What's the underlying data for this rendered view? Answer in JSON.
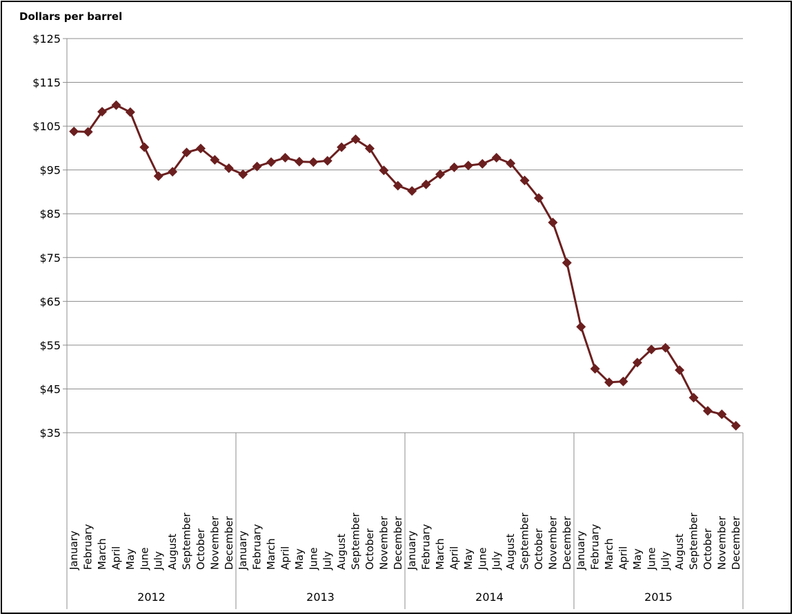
{
  "chart_data": {
    "type": "line",
    "title": "",
    "ylabel": "Dollars  per barrel",
    "xlabel": "",
    "ylim": [
      35,
      125
    ],
    "yticks": [
      35,
      45,
      55,
      65,
      75,
      85,
      95,
      105,
      115,
      125
    ],
    "ytick_labels": [
      "$35",
      "$45",
      "$55",
      "$65",
      "$75",
      "$85",
      "$95",
      "$105",
      "$115",
      "$125"
    ],
    "grid": true,
    "line_color": "#6B1F1F",
    "years": [
      "2012",
      "2013",
      "2014",
      "2015"
    ],
    "months": [
      "January",
      "February",
      "March",
      "April",
      "May",
      "June",
      "July",
      "August",
      "September",
      "October",
      "November",
      "December"
    ],
    "series": [
      {
        "values": [
          103.8,
          103.7,
          108.3,
          109.8,
          108.2,
          100.2,
          93.6,
          94.6,
          99.0,
          99.9,
          97.3,
          95.4,
          94.0,
          95.8,
          96.8,
          97.8,
          96.9,
          96.8,
          97.1,
          100.2,
          102.0,
          99.9,
          94.9,
          91.4,
          90.2,
          91.7,
          94.0,
          95.6,
          96.0,
          96.4,
          97.8,
          96.5,
          92.6,
          88.6,
          83.0,
          73.8,
          59.2,
          49.6,
          46.5,
          46.7,
          51.0,
          54.0,
          54.4,
          49.3,
          43.0,
          40.0,
          39.2,
          36.6
        ]
      }
    ]
  }
}
